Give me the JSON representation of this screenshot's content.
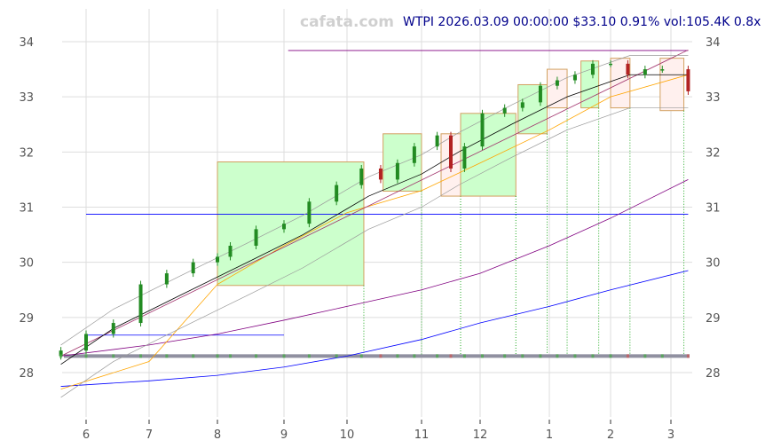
{
  "watermark": "cafata.com",
  "header": {
    "title": "WTPI 2026.03.09 00:00:00 $33.10 0.91% vol:105.4K 0.8x"
  },
  "chart_data": {
    "type": "candlestick",
    "ticker": "WTPI",
    "ylim": [
      27.2,
      34.6
    ],
    "yticks": [
      28,
      29,
      30,
      31,
      32,
      33,
      34
    ],
    "xticks": [
      {
        "label": "6",
        "date": "2025-06-01"
      },
      {
        "label": "7",
        "date": "2025-07-01"
      },
      {
        "label": "8",
        "date": "2025-08-01"
      },
      {
        "label": "9",
        "date": "2025-09-01"
      },
      {
        "label": "10",
        "date": "2025-10-01"
      },
      {
        "label": "11",
        "date": "2025-11-01"
      },
      {
        "label": "12",
        "date": "2025-12-01"
      },
      {
        "label": "1",
        "date": "2026-01-01"
      },
      {
        "label": "2",
        "date": "2026-02-01"
      },
      {
        "label": "3",
        "date": "2026-03-01"
      }
    ],
    "grid": true,
    "colors": {
      "up": "#228b22",
      "down": "#b22222",
      "ma_short": "#000000",
      "ma_orange": "#ffa500",
      "ma_purple": "#800080",
      "ma_blue": "#0000ff",
      "box_green": "#ccffcc",
      "box_pink": "#fff0ee"
    },
    "closes": [
      [
        "2025-05-20",
        28.4
      ],
      [
        "2025-06-01",
        28.7
      ],
      [
        "2025-06-14",
        28.9
      ],
      [
        "2025-06-27",
        29.6
      ],
      [
        "2025-07-09",
        29.8
      ],
      [
        "2025-07-21",
        30.0
      ],
      [
        "2025-08-01",
        30.1
      ],
      [
        "2025-08-07",
        30.3
      ],
      [
        "2025-08-19",
        30.6
      ],
      [
        "2025-09-01",
        30.7
      ],
      [
        "2025-09-13",
        31.1
      ],
      [
        "2025-09-26",
        31.4
      ],
      [
        "2025-10-07",
        31.7
      ],
      [
        "2025-10-15",
        31.5
      ],
      [
        "2025-10-22",
        31.8
      ],
      [
        "2025-10-29",
        32.1
      ],
      [
        "2025-11-09",
        32.3
      ],
      [
        "2025-11-16",
        31.7
      ],
      [
        "2025-11-23",
        32.1
      ],
      [
        "2025-12-02",
        32.7
      ],
      [
        "2025-12-12",
        32.8
      ],
      [
        "2025-12-20",
        32.9
      ],
      [
        "2025-12-28",
        33.2
      ],
      [
        "2026-01-05",
        33.3
      ],
      [
        "2026-01-14",
        33.4
      ],
      [
        "2026-01-23",
        33.6
      ],
      [
        "2026-02-01",
        33.6
      ],
      [
        "2026-02-09",
        33.4
      ],
      [
        "2026-02-17",
        33.5
      ],
      [
        "2026-02-25",
        33.5
      ],
      [
        "2026-03-09",
        33.1
      ]
    ],
    "ma_short": [
      [
        "2025-05-20",
        28.15
      ],
      [
        "2025-06-14",
        28.8
      ],
      [
        "2025-07-15",
        29.4
      ],
      [
        "2025-08-15",
        30.0
      ],
      [
        "2025-09-10",
        30.5
      ],
      [
        "2025-10-10",
        31.2
      ],
      [
        "2025-11-01",
        31.6
      ],
      [
        "2025-11-20",
        32.0
      ],
      [
        "2025-12-15",
        32.5
      ],
      [
        "2026-01-10",
        33.0
      ],
      [
        "2026-02-10",
        33.4
      ],
      [
        "2026-03-09",
        33.4
      ]
    ],
    "ma_orange": [
      [
        "2025-05-20",
        27.7
      ],
      [
        "2025-07-01",
        28.2
      ],
      [
        "2025-08-01",
        29.6
      ],
      [
        "2025-09-01",
        30.3
      ],
      [
        "2025-10-01",
        30.9
      ],
      [
        "2025-11-01",
        31.3
      ],
      [
        "2025-12-01",
        31.8
      ],
      [
        "2026-01-01",
        32.4
      ],
      [
        "2026-02-01",
        33.0
      ],
      [
        "2026-03-09",
        33.4
      ]
    ],
    "ma_purple": [
      [
        "2025-05-20",
        28.3
      ],
      [
        "2025-07-01",
        28.5
      ],
      [
        "2025-08-01",
        28.7
      ],
      [
        "2025-09-01",
        28.95
      ],
      [
        "2025-10-01",
        29.2
      ],
      [
        "2025-11-01",
        29.5
      ],
      [
        "2025-12-01",
        29.8
      ],
      [
        "2026-01-01",
        30.3
      ],
      [
        "2026-02-01",
        30.8
      ],
      [
        "2026-03-09",
        31.5
      ]
    ],
    "ma_blue": [
      [
        "2025-05-20",
        27.75
      ],
      [
        "2025-07-01",
        27.85
      ],
      [
        "2025-08-01",
        27.95
      ],
      [
        "2025-09-01",
        28.1
      ],
      [
        "2025-10-01",
        28.3
      ],
      [
        "2025-11-01",
        28.6
      ],
      [
        "2025-12-01",
        28.9
      ],
      [
        "2026-01-01",
        29.2
      ],
      [
        "2026-02-01",
        29.5
      ],
      [
        "2026-03-09",
        29.85
      ]
    ],
    "trend_line": [
      [
        "2025-05-20",
        28.3
      ],
      [
        "2026-03-09",
        33.85
      ]
    ],
    "hlines": [
      {
        "from": "2025-09-03",
        "to": "2026-03-09",
        "price": 33.84,
        "color": "#800080"
      },
      {
        "from": "2025-06-01",
        "to": "2026-03-09",
        "price": 30.87,
        "color": "#0000ff"
      },
      {
        "from": "2025-06-01",
        "to": "2025-09-01",
        "price": 28.68,
        "color": "#0000ff"
      }
    ],
    "boxes": [
      {
        "from": "2025-08-01",
        "to": "2025-10-08",
        "top": 31.82,
        "bottom": 29.58,
        "kind": "green"
      },
      {
        "from": "2025-10-16",
        "to": "2025-11-01",
        "top": 32.33,
        "bottom": 31.29,
        "kind": "green"
      },
      {
        "from": "2025-11-11",
        "to": "2025-11-21",
        "top": 32.33,
        "bottom": 31.2,
        "kind": "pink"
      },
      {
        "from": "2025-11-21",
        "to": "2025-12-17",
        "top": 32.7,
        "bottom": 31.2,
        "kind": "green"
      },
      {
        "from": "2025-12-18",
        "to": "2025-12-31",
        "top": 33.22,
        "bottom": 32.33,
        "kind": "green"
      },
      {
        "from": "2025-12-31",
        "to": "2026-01-10",
        "top": 33.5,
        "bottom": 32.8,
        "kind": "pink"
      },
      {
        "from": "2026-01-17",
        "to": "2026-01-26",
        "top": 33.65,
        "bottom": 32.8,
        "kind": "green"
      },
      {
        "from": "2026-02-01",
        "to": "2026-02-10",
        "top": 33.7,
        "bottom": 32.8,
        "kind": "pink"
      },
      {
        "from": "2026-02-24",
        "to": "2026-03-07",
        "top": 33.7,
        "bottom": 32.75,
        "kind": "pink"
      }
    ],
    "volume_band_price": 28.3
  }
}
